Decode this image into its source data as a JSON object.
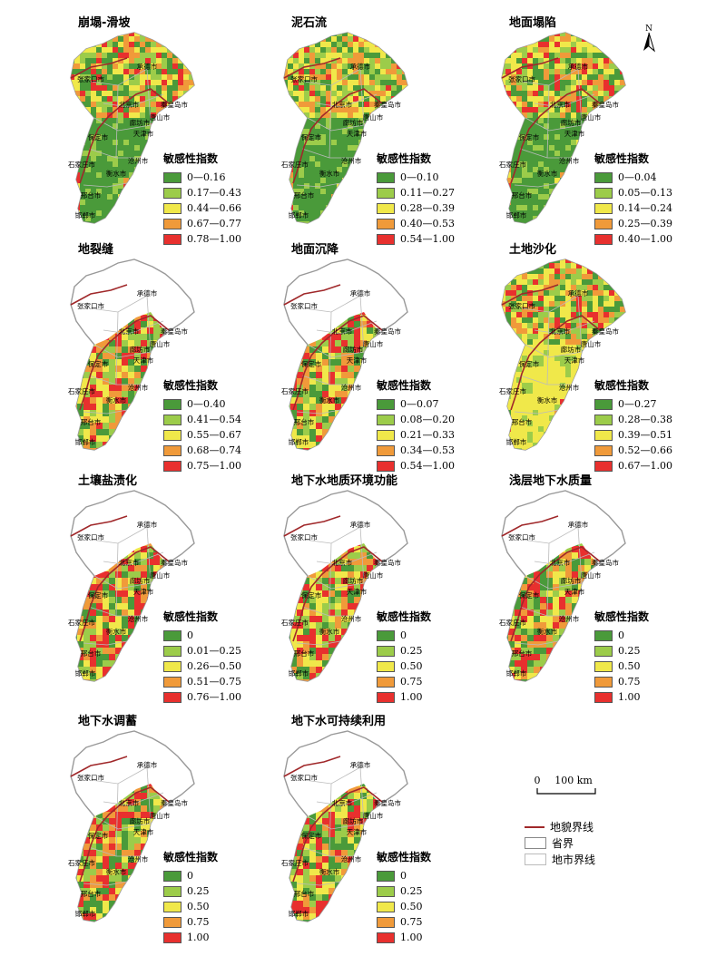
{
  "legend_title": "敏感性指数",
  "colors": [
    "#4a9a3a",
    "#9ccc4a",
    "#f0e84a",
    "#f09a3a",
    "#e8302e"
  ],
  "cities": [
    "承德市",
    "张家口市",
    "北京市",
    "秦皇岛市",
    "唐山市",
    "廊坊市",
    "天津市",
    "保定市",
    "沧州市",
    "石家庄市",
    "衡水市",
    "邢台市",
    "邯郸市"
  ],
  "panels": [
    {
      "title": "崩塌-滑坡",
      "labels": [
        "0—0.16",
        "0.17—0.43",
        "0.44—0.66",
        "0.67—0.77",
        "0.78—1.00"
      ],
      "coverage": "full",
      "palette": [
        0,
        1,
        2,
        3,
        4
      ]
    },
    {
      "title": "泥石流",
      "labels": [
        "0—0.10",
        "0.11—0.27",
        "0.28—0.39",
        "0.40—0.53",
        "0.54—1.00"
      ],
      "coverage": "full",
      "palette": [
        0,
        1,
        2,
        3,
        4
      ]
    },
    {
      "title": "地面塌陷",
      "labels": [
        "0—0.04",
        "0.05—0.13",
        "0.14—0.24",
        "0.25—0.39",
        "0.40—1.00"
      ],
      "coverage": "full",
      "palette": [
        0,
        1,
        2,
        3,
        4
      ]
    },
    {
      "title": "地裂缝",
      "labels": [
        "0—0.40",
        "0.41—0.54",
        "0.55—0.67",
        "0.68—0.74",
        "0.75—1.00"
      ],
      "coverage": "plain",
      "palette": [
        4,
        3,
        2,
        1,
        0
      ]
    },
    {
      "title": "地面沉降",
      "labels": [
        "0—0.07",
        "0.08—0.20",
        "0.21—0.33",
        "0.34—0.53",
        "0.54—1.00"
      ],
      "coverage": "plain",
      "palette": [
        1,
        0,
        2,
        3,
        4
      ]
    },
    {
      "title": "土地沙化",
      "labels": [
        "0—0.27",
        "0.28—0.38",
        "0.39—0.51",
        "0.52—0.66",
        "0.67—1.00"
      ],
      "coverage": "full",
      "palette": [
        2,
        1,
        0,
        3,
        4
      ]
    },
    {
      "title": "土壤盐渍化",
      "labels": [
        "0",
        "0.01—0.25",
        "0.26—0.50",
        "0.51—0.75",
        "0.76—1.00"
      ],
      "coverage": "plain",
      "palette": [
        2,
        3,
        4,
        1,
        0
      ]
    },
    {
      "title": "地下水地质环境功能",
      "labels": [
        "0",
        "0.25",
        "0.50",
        "0.75",
        "1.00"
      ],
      "coverage": "plain",
      "palette": [
        3,
        2,
        1,
        0,
        4
      ]
    },
    {
      "title": "浅层地下水质量",
      "labels": [
        "0",
        "0.25",
        "0.50",
        "0.75",
        "1.00"
      ],
      "coverage": "plain",
      "palette": [
        4,
        3,
        0,
        2,
        1
      ]
    },
    {
      "title": "地下水调蓄",
      "labels": [
        "0",
        "0.25",
        "0.50",
        "0.75",
        "1.00"
      ],
      "coverage": "plain",
      "palette": [
        4,
        1,
        2,
        3,
        0
      ]
    },
    {
      "title": "地下水可持续利用",
      "labels": [
        "0",
        "0.25",
        "0.50",
        "0.75",
        "1.00"
      ],
      "coverage": "plain",
      "palette": [
        1,
        0,
        2,
        3,
        4
      ]
    }
  ],
  "scalebar": {
    "zero": "0",
    "len": "100 km"
  },
  "north_label": "N",
  "keys": [
    {
      "label": "地貌界线",
      "type": "line",
      "color": "#a0282a"
    },
    {
      "label": "省界",
      "type": "box",
      "color": "#888888"
    },
    {
      "label": "地市界线",
      "type": "box",
      "color": "#bbbbbb"
    }
  ]
}
